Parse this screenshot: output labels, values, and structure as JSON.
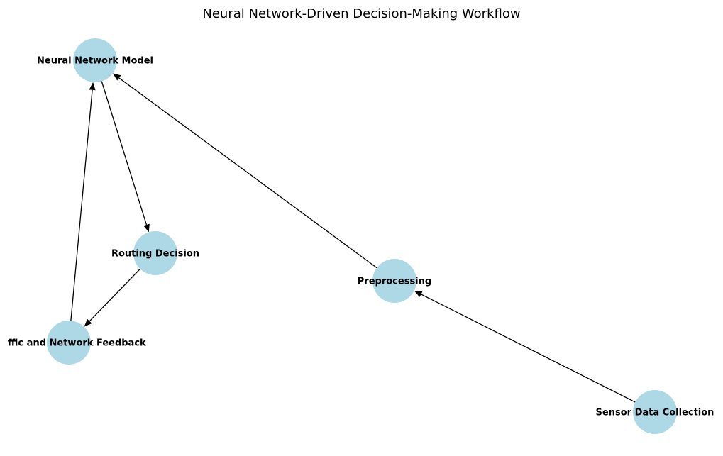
{
  "title": "Neural Network-Driven Decision-Making Workflow",
  "colors": {
    "node_fill": "#add8e6",
    "edge": "#000000",
    "text": "#000000"
  },
  "nodes": [
    {
      "id": "nn",
      "label": "Neural Network Model"
    },
    {
      "id": "routing",
      "label": "Routing Decision"
    },
    {
      "id": "feedback",
      "label": "Traffic and Network Feedback"
    },
    {
      "id": "preproc",
      "label": "Preprocessing"
    },
    {
      "id": "sensor",
      "label": "Sensor Data Collection"
    }
  ],
  "edges": [
    {
      "from": "sensor",
      "to": "preproc"
    },
    {
      "from": "preproc",
      "to": "nn"
    },
    {
      "from": "nn",
      "to": "routing"
    },
    {
      "from": "routing",
      "to": "feedback"
    },
    {
      "from": "feedback",
      "to": "nn"
    }
  ]
}
